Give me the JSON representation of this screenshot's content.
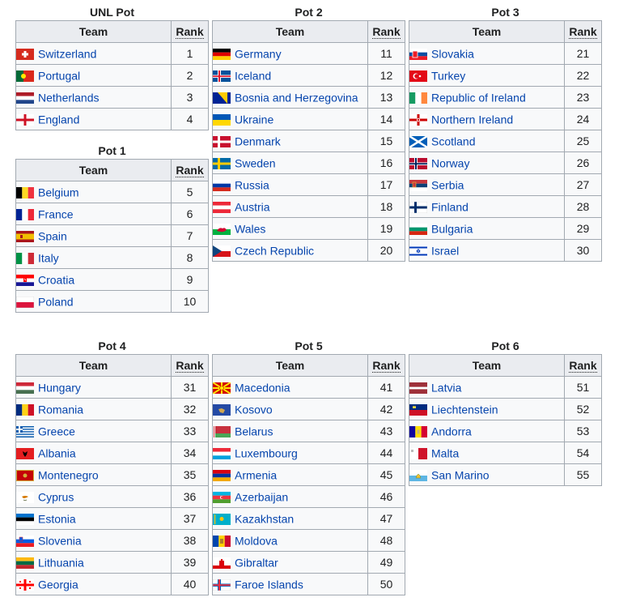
{
  "header_team": "Team",
  "header_rank": "Rank",
  "pots": [
    {
      "title": "UNL Pot",
      "teams": [
        {
          "name": "Switzerland",
          "rank": "1",
          "flag": "switzerland-flag"
        },
        {
          "name": "Portugal",
          "rank": "2",
          "flag": "portugal-flag"
        },
        {
          "name": "Netherlands",
          "rank": "3",
          "flag": "netherlands-flag"
        },
        {
          "name": "England",
          "rank": "4",
          "flag": "england-flag"
        }
      ]
    },
    {
      "title": "Pot 1",
      "teams": [
        {
          "name": "Belgium",
          "rank": "5",
          "flag": "belgium-flag"
        },
        {
          "name": "France",
          "rank": "6",
          "flag": "france-flag"
        },
        {
          "name": "Spain",
          "rank": "7",
          "flag": "spain-flag"
        },
        {
          "name": "Italy",
          "rank": "8",
          "flag": "italy-flag"
        },
        {
          "name": "Croatia",
          "rank": "9",
          "flag": "croatia-flag"
        },
        {
          "name": "Poland",
          "rank": "10",
          "flag": "poland-flag"
        }
      ]
    },
    {
      "title": "Pot 2",
      "teams": [
        {
          "name": "Germany",
          "rank": "11",
          "flag": "germany-flag"
        },
        {
          "name": "Iceland",
          "rank": "12",
          "flag": "iceland-flag"
        },
        {
          "name": "Bosnia and Herzegovina",
          "rank": "13",
          "flag": "bosnia-flag"
        },
        {
          "name": "Ukraine",
          "rank": "14",
          "flag": "ukraine-flag"
        },
        {
          "name": "Denmark",
          "rank": "15",
          "flag": "denmark-flag"
        },
        {
          "name": "Sweden",
          "rank": "16",
          "flag": "sweden-flag"
        },
        {
          "name": "Russia",
          "rank": "17",
          "flag": "russia-flag"
        },
        {
          "name": "Austria",
          "rank": "18",
          "flag": "austria-flag"
        },
        {
          "name": "Wales",
          "rank": "19",
          "flag": "wales-flag"
        },
        {
          "name": "Czech Republic",
          "rank": "20",
          "flag": "czech-flag"
        }
      ]
    },
    {
      "title": "Pot 3",
      "teams": [
        {
          "name": "Slovakia",
          "rank": "21",
          "flag": "slovakia-flag"
        },
        {
          "name": "Turkey",
          "rank": "22",
          "flag": "turkey-flag"
        },
        {
          "name": "Republic of Ireland",
          "rank": "23",
          "flag": "ireland-flag"
        },
        {
          "name": "Northern Ireland",
          "rank": "24",
          "flag": "northern-ireland-flag"
        },
        {
          "name": "Scotland",
          "rank": "25",
          "flag": "scotland-flag"
        },
        {
          "name": "Norway",
          "rank": "26",
          "flag": "norway-flag"
        },
        {
          "name": "Serbia",
          "rank": "27",
          "flag": "serbia-flag"
        },
        {
          "name": "Finland",
          "rank": "28",
          "flag": "finland-flag"
        },
        {
          "name": "Bulgaria",
          "rank": "29",
          "flag": "bulgaria-flag"
        },
        {
          "name": "Israel",
          "rank": "30",
          "flag": "israel-flag"
        }
      ]
    },
    {
      "title": "Pot 4",
      "teams": [
        {
          "name": "Hungary",
          "rank": "31",
          "flag": "hungary-flag"
        },
        {
          "name": "Romania",
          "rank": "32",
          "flag": "romania-flag"
        },
        {
          "name": "Greece",
          "rank": "33",
          "flag": "greece-flag"
        },
        {
          "name": "Albania",
          "rank": "34",
          "flag": "albania-flag"
        },
        {
          "name": "Montenegro",
          "rank": "35",
          "flag": "montenegro-flag"
        },
        {
          "name": "Cyprus",
          "rank": "36",
          "flag": "cyprus-flag"
        },
        {
          "name": "Estonia",
          "rank": "37",
          "flag": "estonia-flag"
        },
        {
          "name": "Slovenia",
          "rank": "38",
          "flag": "slovenia-flag"
        },
        {
          "name": "Lithuania",
          "rank": "39",
          "flag": "lithuania-flag"
        },
        {
          "name": "Georgia",
          "rank": "40",
          "flag": "georgia-flag"
        }
      ]
    },
    {
      "title": "Pot 5",
      "teams": [
        {
          "name": "Macedonia",
          "rank": "41",
          "flag": "macedonia-flag"
        },
        {
          "name": "Kosovo",
          "rank": "42",
          "flag": "kosovo-flag"
        },
        {
          "name": "Belarus",
          "rank": "43",
          "flag": "belarus-flag"
        },
        {
          "name": "Luxembourg",
          "rank": "44",
          "flag": "luxembourg-flag"
        },
        {
          "name": "Armenia",
          "rank": "45",
          "flag": "armenia-flag"
        },
        {
          "name": "Azerbaijan",
          "rank": "46",
          "flag": "azerbaijan-flag"
        },
        {
          "name": "Kazakhstan",
          "rank": "47",
          "flag": "kazakhstan-flag"
        },
        {
          "name": "Moldova",
          "rank": "48",
          "flag": "moldova-flag"
        },
        {
          "name": "Gibraltar",
          "rank": "49",
          "flag": "gibraltar-flag"
        },
        {
          "name": "Faroe Islands",
          "rank": "50",
          "flag": "faroe-islands-flag"
        }
      ]
    },
    {
      "title": "Pot 6",
      "teams": [
        {
          "name": "Latvia",
          "rank": "51",
          "flag": "latvia-flag"
        },
        {
          "name": "Liechtenstein",
          "rank": "52",
          "flag": "liechtenstein-flag"
        },
        {
          "name": "Andorra",
          "rank": "53",
          "flag": "andorra-flag"
        },
        {
          "name": "Malta",
          "rank": "54",
          "flag": "malta-flag"
        },
        {
          "name": "San Marino",
          "rank": "55",
          "flag": "san-marino-flag"
        }
      ]
    }
  ]
}
